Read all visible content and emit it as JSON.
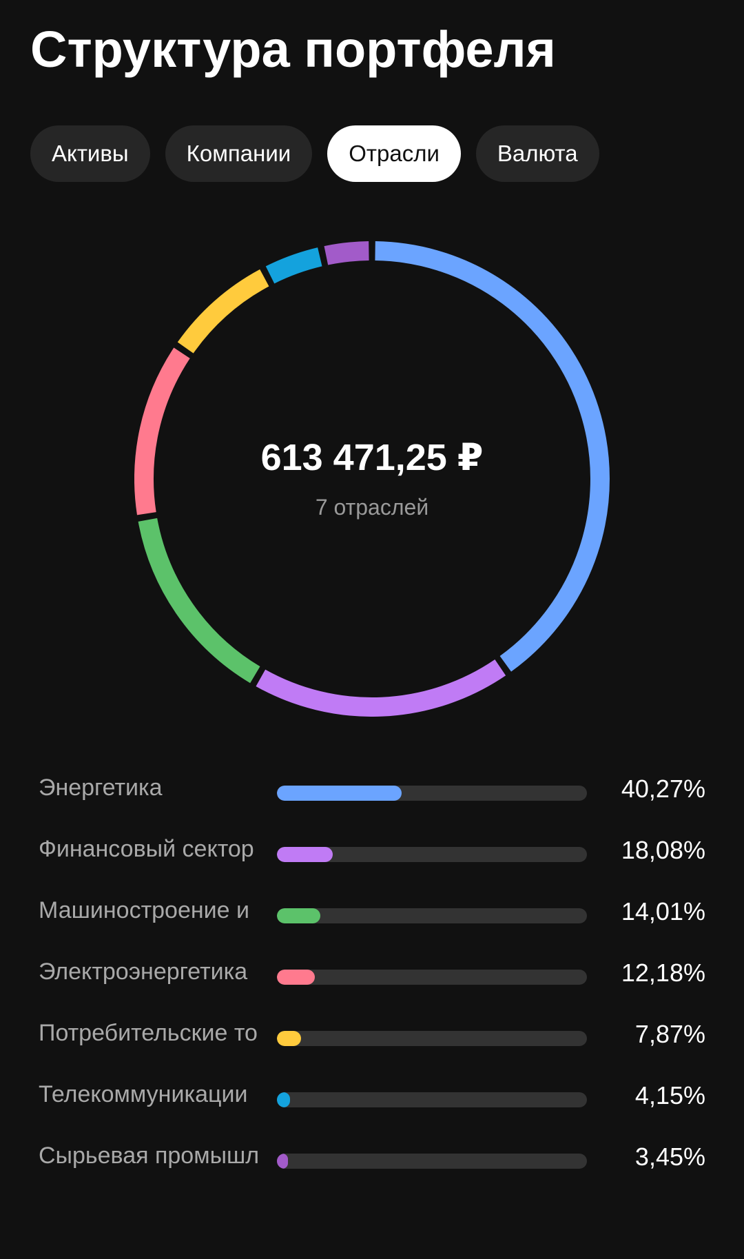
{
  "page_title": "Структура портфеля",
  "tabs": [
    {
      "label": "Активы",
      "active": false
    },
    {
      "label": "Компании",
      "active": false
    },
    {
      "label": "Отрасли",
      "active": true
    },
    {
      "label": "Валюта",
      "active": false
    }
  ],
  "summary": {
    "total": "613 471,25 ₽",
    "subtitle": "7 отраслей"
  },
  "chart_data": {
    "type": "pie",
    "categories": [
      "Энергетика",
      "Финансовый сектор",
      "Машиностроение и",
      "Электроэнергетика",
      "Потребительские то",
      "Телекоммуникации",
      "Сырьевая промышл"
    ],
    "values": [
      40.27,
      18.08,
      14.01,
      12.18,
      7.87,
      4.15,
      3.45
    ],
    "colors": [
      "#6ba4ff",
      "#c07bf5",
      "#5cc26a",
      "#ff7a8e",
      "#ffcb3d",
      "#14a2dd",
      "#a25bc9"
    ]
  },
  "sectors": [
    {
      "label": "Энергетика",
      "percent_text": "40,27%",
      "percent": 40.27,
      "color": "#6ba4ff"
    },
    {
      "label": "Финансовый сектор",
      "percent_text": "18,08%",
      "percent": 18.08,
      "color": "#c07bf5"
    },
    {
      "label": "Машиностроение и",
      "percent_text": "14,01%",
      "percent": 14.01,
      "color": "#5cc26a"
    },
    {
      "label": "Электроэнергетика",
      "percent_text": "12,18%",
      "percent": 12.18,
      "color": "#ff7a8e"
    },
    {
      "label": "Потребительские то",
      "percent_text": "7,87%",
      "percent": 7.87,
      "color": "#ffcb3d"
    },
    {
      "label": "Телекоммуникации",
      "percent_text": "4,15%",
      "percent": 4.15,
      "color": "#14a2dd"
    },
    {
      "label": "Сырьевая промышл",
      "percent_text": "3,45%",
      "percent": 3.45,
      "color": "#a25bc9"
    }
  ]
}
